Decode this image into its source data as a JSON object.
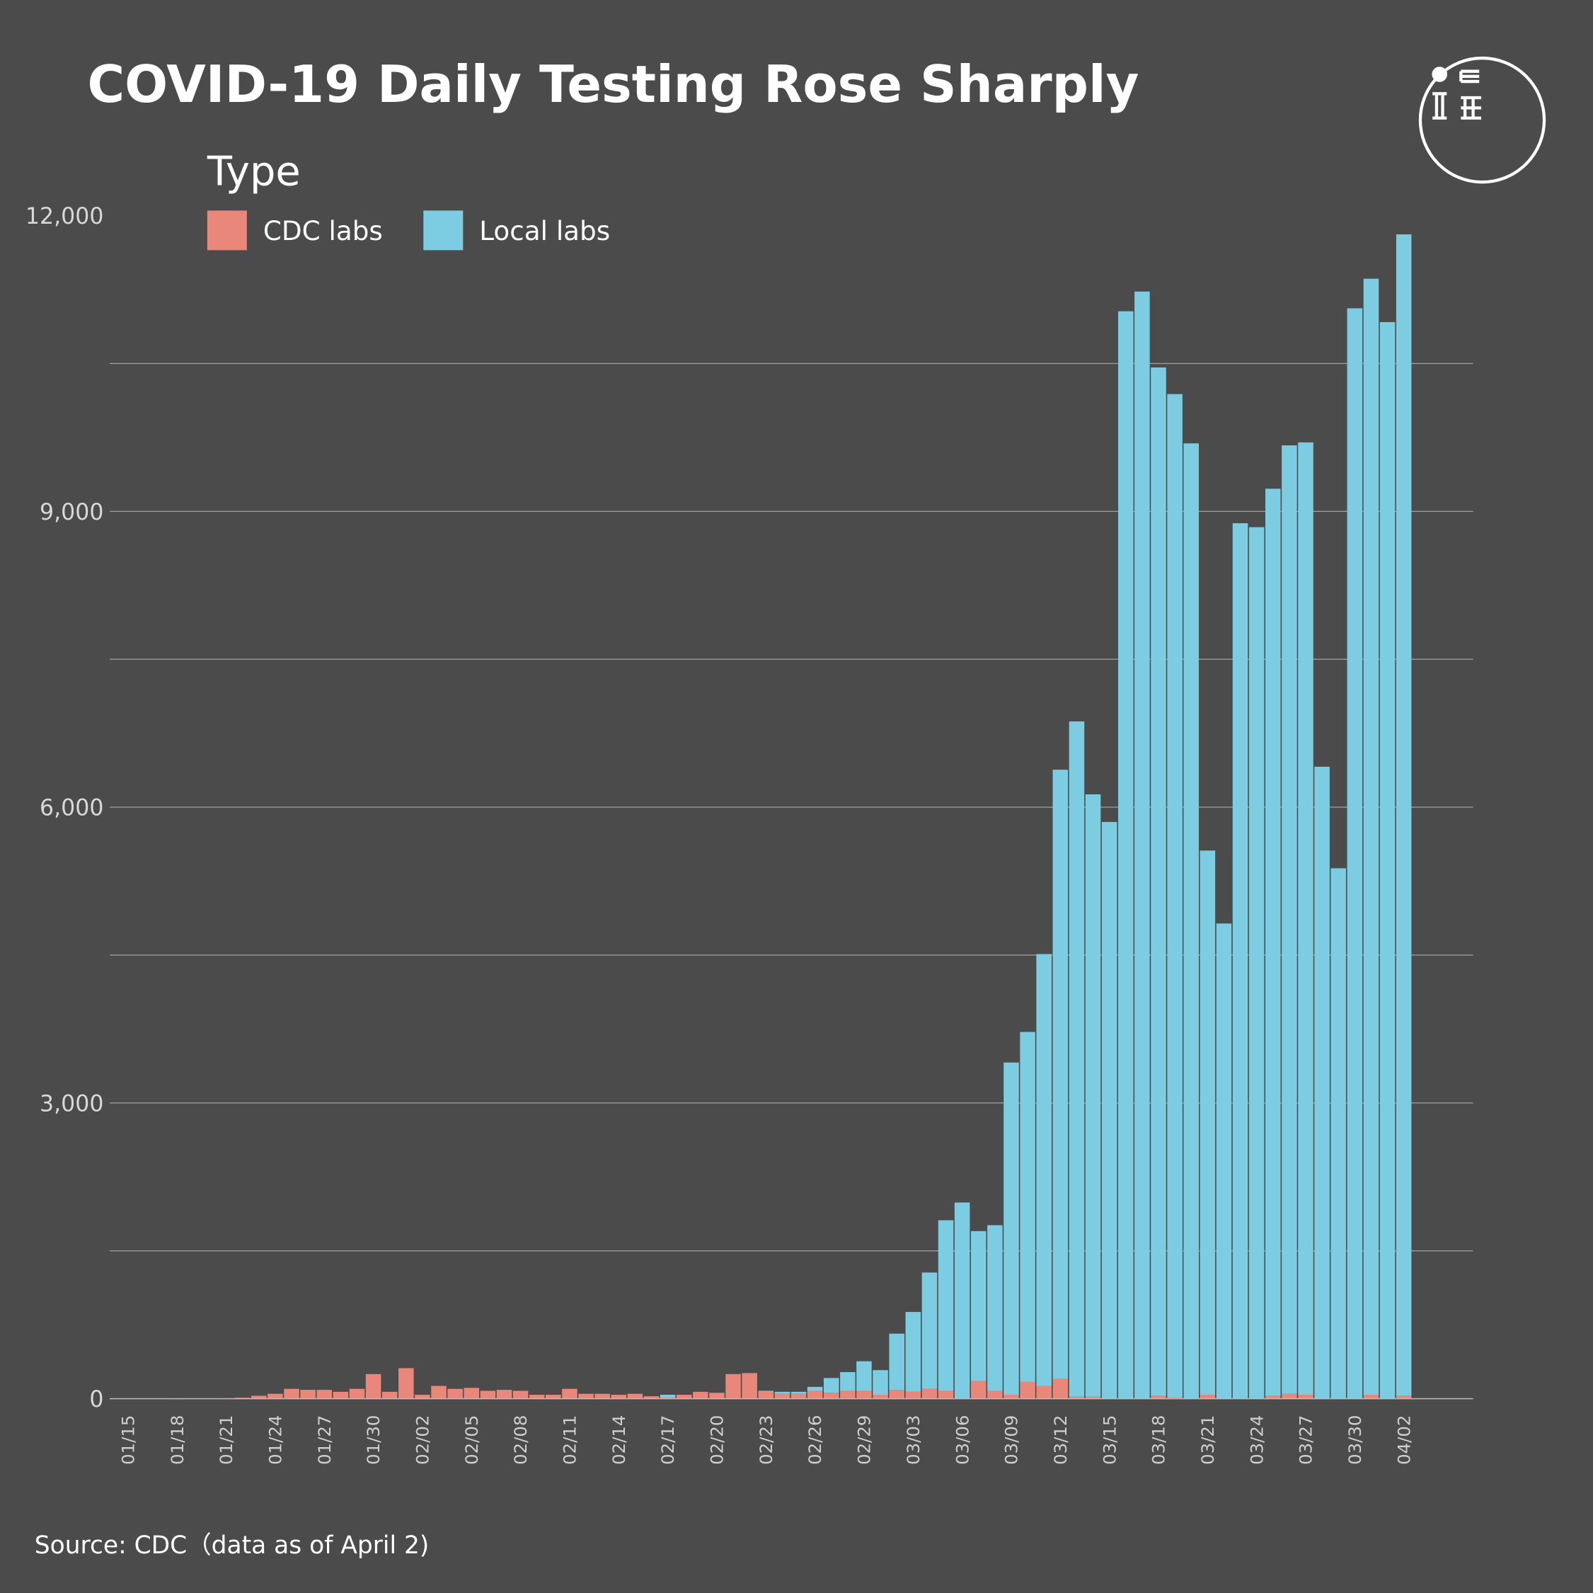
{
  "chart_data": {
    "type": "stacked_bar",
    "title": "COVID-19 Daily Testing Rose Sharply",
    "legend_title": "Type",
    "source": "Source: CDC（data as of April 2)",
    "categories": [
      "01/15",
      null,
      null,
      "01/18",
      null,
      null,
      "01/21",
      null,
      null,
      "01/24",
      null,
      null,
      "01/27",
      null,
      null,
      "01/30",
      null,
      null,
      "02/02",
      null,
      null,
      "02/05",
      null,
      null,
      "02/08",
      null,
      null,
      "02/11",
      null,
      null,
      "02/14",
      null,
      null,
      "02/17",
      null,
      null,
      "02/20",
      null,
      null,
      "02/23",
      null,
      null,
      "02/26",
      null,
      null,
      "02/29",
      null,
      null,
      "03/03",
      null,
      null,
      "03/06",
      null,
      null,
      "03/09",
      null,
      null,
      "03/12",
      null,
      null,
      "03/15",
      null,
      null,
      "03/18",
      null,
      null,
      "03/21",
      null,
      null,
      "03/24",
      null,
      null,
      "03/27",
      null,
      null,
      "03/30",
      null,
      null,
      "04/02"
    ],
    "series": [
      {
        "name": "CDC labs",
        "color": "#e8877a",
        "values": [
          0,
          0,
          0,
          5,
          0,
          3,
          5,
          10,
          30,
          50,
          100,
          90,
          90,
          70,
          100,
          250,
          70,
          310,
          40,
          130,
          100,
          110,
          80,
          90,
          80,
          40,
          40,
          100,
          50,
          50,
          40,
          50,
          25,
          10,
          40,
          70,
          60,
          250,
          260,
          70,
          50,
          50,
          80,
          60,
          80,
          80,
          40,
          90,
          70,
          100,
          80,
          0,
          180,
          80,
          40,
          170,
          130,
          200,
          20,
          20,
          0,
          0,
          0,
          30,
          10,
          0,
          40,
          0,
          0,
          0,
          30,
          50,
          40,
          0,
          0,
          0,
          40,
          0,
          30
        ]
      },
      {
        "name": "Local labs",
        "color": "#7ccde2",
        "values": [
          0,
          0,
          0,
          0,
          0,
          0,
          0,
          0,
          0,
          0,
          0,
          0,
          0,
          0,
          0,
          0,
          0,
          0,
          0,
          0,
          0,
          0,
          0,
          0,
          0,
          0,
          0,
          0,
          0,
          0,
          0,
          0,
          0,
          30,
          0,
          0,
          0,
          0,
          0,
          10,
          20,
          20,
          40,
          150,
          190,
          300,
          250,
          570,
          810,
          1180,
          1730,
          1990,
          1520,
          1680,
          3370,
          3550,
          4380,
          6180,
          6850,
          6110,
          5850,
          11030,
          11230,
          10430,
          10180,
          9690,
          5520,
          4820,
          8880,
          8840,
          9200,
          9620,
          9660,
          6410,
          5380,
          11060,
          11320,
          10920,
          11780
        ]
      }
    ],
    "ylim": [
      0,
      12000
    ],
    "yticks": [
      {
        "value": 0,
        "label": "0"
      },
      {
        "value": 3000,
        "label": "3,000"
      },
      {
        "value": 6000,
        "label": "6,000"
      },
      {
        "value": 9000,
        "label": "9,000"
      },
      {
        "value": 12000,
        "label": "12,000"
      }
    ],
    "minor_gridlines": [
      1500,
      4500,
      7500,
      10500
    ]
  }
}
